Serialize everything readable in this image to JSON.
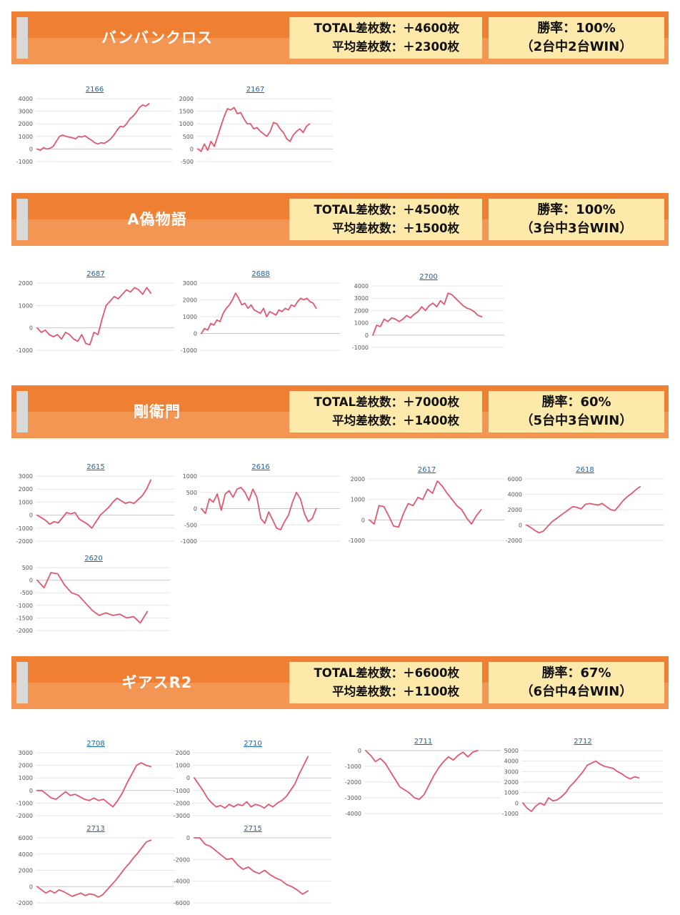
{
  "colors": {
    "header": "#ef7f33",
    "header_light": "#f39553",
    "box": "#fde9a9",
    "line": "#e0576e",
    "grid": "#e6e6e6",
    "zero": "#c8c8c8",
    "link": "#1a64b0"
  },
  "sections": [
    {
      "name": "バンバンクロス",
      "total": "TOTAL差枚数：＋4600枚",
      "average": "平均差枚数：＋2300枚",
      "rate": "勝率：100%",
      "record": "（2台中2台WIN）"
    },
    {
      "name": "A偽物語",
      "total": "TOTAL差枚数：＋4500枚",
      "average": "平均差枚数：＋1500枚",
      "rate": "勝率：100%",
      "record": "（3台中3台WIN）"
    },
    {
      "name": "剛衛門",
      "total": "TOTAL差枚数：＋7000枚",
      "average": "平均差枚数：＋1400枚",
      "rate": "勝率：60%",
      "record": "（5台中3台WIN）"
    },
    {
      "name": "ギアスR2",
      "total": "TOTAL差枚数：＋6600枚",
      "average": "平均差枚数：＋1100枚",
      "rate": "勝率：67%",
      "record": "（6台中4台WIN）"
    }
  ],
  "chart_data": [
    {
      "type": "line",
      "title": "2166",
      "yticks": [
        4000,
        3000,
        2000,
        1000,
        0,
        -1000
      ],
      "ylim": [
        -1000,
        4000
      ],
      "values": [
        0,
        -100,
        100,
        0,
        50,
        200,
        600,
        1000,
        1100,
        1000,
        950,
        900,
        800,
        1000,
        950,
        1050,
        850,
        700,
        500,
        400,
        500,
        450,
        600,
        800,
        1100,
        1500,
        1800,
        1750,
        2000,
        2400,
        2600,
        2900,
        3300,
        3500,
        3400,
        3600
      ]
    },
    {
      "type": "line",
      "title": "2167",
      "yticks": [
        2000,
        1500,
        1000,
        500,
        0,
        -500
      ],
      "ylim": [
        -500,
        2000
      ],
      "values": [
        0,
        -100,
        200,
        -50,
        300,
        100,
        500,
        900,
        1300,
        1600,
        1550,
        1650,
        1400,
        1450,
        1200,
        1000,
        1000,
        800,
        850,
        700,
        600,
        500,
        700,
        1050,
        1000,
        800,
        650,
        400,
        300,
        550,
        700,
        800,
        650,
        900,
        1000
      ]
    },
    {
      "type": "line",
      "title": "2687",
      "yticks": [
        2000,
        1000,
        0,
        -1000
      ],
      "ylim": [
        -1000,
        2000
      ],
      "values": [
        0,
        -200,
        -100,
        -300,
        -400,
        -300,
        -500,
        -200,
        -300,
        -500,
        -600,
        -300,
        -700,
        -750,
        -200,
        -300,
        400,
        1000,
        1200,
        1400,
        1300,
        1500,
        1700,
        1600,
        1800,
        1700,
        1500,
        1800,
        1550
      ]
    },
    {
      "type": "line",
      "title": "2688",
      "yticks": [
        3000,
        2000,
        1000,
        0,
        -1000
      ],
      "ylim": [
        -1000,
        3000
      ],
      "values": [
        0,
        300,
        200,
        600,
        500,
        800,
        700,
        1200,
        1500,
        1700,
        2000,
        2400,
        2100,
        1700,
        1800,
        1500,
        1700,
        1400,
        1300,
        1200,
        1500,
        1000,
        1300,
        1200,
        1100,
        1400,
        1300,
        1500,
        1400,
        1700,
        1600,
        1900,
        2100,
        2000,
        2100,
        1900,
        1800,
        1500
      ]
    },
    {
      "type": "line",
      "title": "2700",
      "yticks": [
        4000,
        3000,
        2000,
        1000,
        0,
        -1000
      ],
      "ylim": [
        -1000,
        4000
      ],
      "values": [
        0,
        800,
        700,
        1300,
        1100,
        1400,
        1300,
        1100,
        1300,
        1600,
        1400,
        1700,
        1900,
        2300,
        2000,
        2400,
        2600,
        2300,
        2800,
        2500,
        3400,
        3300,
        3000,
        2700,
        2400,
        2200,
        2100,
        1900,
        1600,
        1500
      ]
    },
    {
      "type": "line",
      "title": "2615",
      "yticks": [
        3000,
        2000,
        1000,
        0,
        -1000,
        -2000
      ],
      "ylim": [
        -2000,
        3000
      ],
      "values": [
        0,
        -200,
        -400,
        -700,
        -500,
        -600,
        -200,
        200,
        100,
        200,
        -300,
        -500,
        -700,
        -1000,
        -500,
        0,
        300,
        600,
        1000,
        1300,
        1100,
        900,
        1000,
        900,
        1200,
        1500,
        2000,
        2700
      ]
    },
    {
      "type": "line",
      "title": "2616",
      "yticks": [
        1000,
        500,
        0,
        -500,
        -1000
      ],
      "ylim": [
        -1000,
        1000
      ],
      "values": [
        0,
        -150,
        300,
        200,
        450,
        -50,
        450,
        550,
        350,
        600,
        650,
        500,
        250,
        600,
        350,
        -300,
        -450,
        -100,
        -350,
        -600,
        -650,
        -400,
        -200,
        200,
        500,
        300,
        -150,
        -400,
        -300,
        0
      ]
    },
    {
      "type": "line",
      "title": "2617",
      "yticks": [
        2000,
        1000,
        0,
        -1000
      ],
      "ylim": [
        -1000,
        2000
      ],
      "values": [
        0,
        -200,
        700,
        650,
        200,
        -300,
        -350,
        300,
        800,
        700,
        1100,
        1000,
        1500,
        1300,
        1900,
        1650,
        1300,
        1000,
        700,
        500,
        100,
        -200,
        200,
        500
      ]
    },
    {
      "type": "line",
      "title": "2618",
      "yticks": [
        6000,
        4000,
        2000,
        0,
        -2000
      ],
      "ylim": [
        -2000,
        6000
      ],
      "values": [
        0,
        -300,
        -700,
        -1000,
        -800,
        -200,
        400,
        800,
        1200,
        1600,
        2000,
        2400,
        2300,
        2100,
        2700,
        2800,
        2700,
        2600,
        2800,
        2400,
        2000,
        1900,
        2500,
        3200,
        3700,
        4100,
        4600,
        5000
      ]
    },
    {
      "type": "line",
      "title": "2620",
      "yticks": [
        500,
        0,
        -500,
        -1000,
        -1500,
        -2000
      ],
      "ylim": [
        -2000,
        500
      ],
      "values": [
        0,
        -300,
        300,
        250,
        -200,
        -500,
        -600,
        -900,
        -1200,
        -1400,
        -1300,
        -1400,
        -1350,
        -1500,
        -1450,
        -1700,
        -1250
      ]
    },
    {
      "type": "line",
      "title": "2708",
      "yticks": [
        3000,
        2000,
        1000,
        0,
        -1000,
        -2000
      ],
      "ylim": [
        -2000,
        3000
      ],
      "values": [
        0,
        0,
        -300,
        -600,
        -700,
        -400,
        -100,
        -400,
        -300,
        -500,
        -700,
        -800,
        -600,
        -800,
        -700,
        -1000,
        -1300,
        -800,
        -200,
        600,
        1300,
        2000,
        2200,
        2000,
        1900
      ]
    },
    {
      "type": "line",
      "title": "2710",
      "yticks": [
        2000,
        1000,
        0,
        -1000,
        -2000,
        -3000
      ],
      "ylim": [
        -3000,
        2000
      ],
      "values": [
        0,
        -500,
        -1000,
        -1600,
        -2000,
        -2300,
        -2200,
        -2400,
        -2100,
        -2300,
        -2100,
        -2200,
        -1900,
        -2300,
        -2100,
        -2200,
        -2400,
        -2100,
        -2300,
        -2000,
        -1800,
        -1500,
        -1000,
        -500,
        300,
        1000,
        1700
      ]
    },
    {
      "type": "line",
      "title": "2711",
      "yticks": [
        0,
        -1000,
        -2000,
        -3000,
        -4000
      ],
      "ylim": [
        -4000,
        0
      ],
      "values": [
        0,
        -300,
        -700,
        -500,
        -800,
        -1300,
        -1800,
        -2300,
        -2500,
        -2700,
        -3000,
        -3100,
        -2800,
        -2200,
        -1600,
        -1100,
        -700,
        -400,
        -600,
        -300,
        -100,
        -400,
        -100,
        0
      ]
    },
    {
      "type": "line",
      "title": "2712",
      "yticks": [
        5000,
        4000,
        3000,
        2000,
        1000,
        0,
        -1000
      ],
      "ylim": [
        -1000,
        5000
      ],
      "values": [
        0,
        -500,
        -800,
        -300,
        0,
        -200,
        500,
        200,
        300,
        600,
        1000,
        1600,
        2000,
        2500,
        3000,
        3600,
        3800,
        4000,
        3700,
        3500,
        3400,
        3300,
        3000,
        2800,
        2500,
        2300,
        2500,
        2400
      ]
    },
    {
      "type": "line",
      "title": "2713",
      "yticks": [
        6000,
        4000,
        2000,
        0,
        -2000
      ],
      "ylim": [
        -2000,
        6000
      ],
      "values": [
        0,
        -400,
        -800,
        -500,
        -800,
        -400,
        -600,
        -900,
        -1200,
        -1000,
        -800,
        -1100,
        -900,
        -1000,
        -1300,
        -1000,
        -400,
        200,
        800,
        1500,
        2200,
        2800,
        3500,
        4100,
        4800,
        5500,
        5700
      ]
    },
    {
      "type": "line",
      "title": "2715",
      "yticks": [
        0,
        -2000,
        -4000,
        -6000
      ],
      "ylim": [
        -6000,
        0
      ],
      "values": [
        0,
        0,
        -600,
        -800,
        -1200,
        -1600,
        -2000,
        -1900,
        -2500,
        -2900,
        -2700,
        -3100,
        -3300,
        -3000,
        -3400,
        -3700,
        -3900,
        -4300,
        -4500,
        -4800,
        -5200,
        -4900
      ]
    }
  ]
}
